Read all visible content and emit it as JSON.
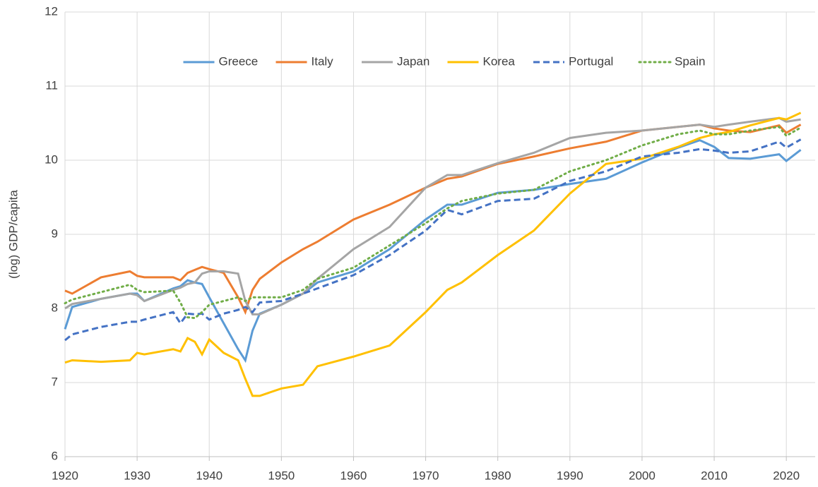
{
  "chart_data": {
    "type": "line",
    "y_label": "(log) GDP/capita",
    "x": [
      1920,
      1921,
      1925,
      1929,
      1930,
      1931,
      1935,
      1936,
      1937,
      1938,
      1939,
      1940,
      1942,
      1944,
      1945,
      1946,
      1947,
      1950,
      1953,
      1955,
      1960,
      1965,
      1970,
      1973,
      1975,
      1980,
      1985,
      1990,
      1995,
      2000,
      2005,
      2008,
      2010,
      2012,
      2015,
      2019,
      2020,
      2022
    ],
    "series": [
      {
        "name": "Greece",
        "color": "#5b9bd5",
        "dash": "solid",
        "values": [
          7.72,
          8.02,
          8.13,
          8.2,
          8.2,
          8.1,
          8.27,
          8.3,
          8.38,
          8.35,
          8.33,
          8.15,
          7.8,
          7.45,
          7.3,
          7.7,
          7.93,
          8.05,
          8.2,
          8.35,
          8.5,
          8.8,
          9.2,
          9.4,
          9.4,
          9.56,
          9.6,
          9.68,
          9.75,
          9.97,
          10.17,
          10.27,
          10.18,
          10.03,
          10.02,
          10.08,
          9.99,
          10.14
        ]
      },
      {
        "name": "Italy",
        "color": "#ed7d31",
        "dash": "solid",
        "values": [
          8.24,
          8.2,
          8.42,
          8.5,
          8.44,
          8.42,
          8.42,
          8.38,
          8.48,
          8.52,
          8.56,
          8.53,
          8.48,
          8.15,
          7.95,
          8.25,
          8.4,
          8.62,
          8.8,
          8.9,
          9.2,
          9.4,
          9.63,
          9.75,
          9.78,
          9.95,
          10.05,
          10.16,
          10.25,
          10.4,
          10.45,
          10.48,
          10.43,
          10.4,
          10.38,
          10.47,
          10.37,
          10.48
        ]
      },
      {
        "name": "Japan",
        "color": "#a5a5a5",
        "dash": "solid",
        "values": [
          8.0,
          8.06,
          8.13,
          8.2,
          8.18,
          8.1,
          8.25,
          8.28,
          8.33,
          8.35,
          8.47,
          8.5,
          8.5,
          8.47,
          8.1,
          7.92,
          7.92,
          8.05,
          8.2,
          8.4,
          8.8,
          9.1,
          9.63,
          9.8,
          9.8,
          9.96,
          10.1,
          10.3,
          10.37,
          10.4,
          10.45,
          10.48,
          10.45,
          10.48,
          10.52,
          10.57,
          10.52,
          10.55
        ]
      },
      {
        "name": "Korea",
        "color": "#ffc000",
        "dash": "solid",
        "values": [
          7.27,
          7.3,
          7.28,
          7.3,
          7.4,
          7.38,
          7.45,
          7.42,
          7.6,
          7.55,
          7.38,
          7.58,
          7.4,
          7.3,
          7.05,
          6.82,
          6.82,
          6.92,
          6.97,
          7.22,
          7.35,
          7.5,
          7.95,
          8.25,
          8.35,
          8.72,
          9.05,
          9.55,
          9.95,
          10.02,
          10.18,
          10.3,
          10.35,
          10.38,
          10.47,
          10.57,
          10.55,
          10.64
        ]
      },
      {
        "name": "Portugal",
        "color": "#4472c4",
        "dash": "dash",
        "values": [
          7.57,
          7.65,
          7.75,
          7.82,
          7.82,
          7.85,
          7.95,
          7.8,
          7.93,
          7.92,
          7.93,
          7.85,
          7.93,
          7.98,
          8.02,
          7.95,
          8.08,
          8.1,
          8.2,
          8.27,
          8.45,
          8.72,
          9.05,
          9.33,
          9.27,
          9.45,
          9.48,
          9.72,
          9.85,
          10.05,
          10.1,
          10.15,
          10.13,
          10.1,
          10.12,
          10.25,
          10.17,
          10.28
        ]
      },
      {
        "name": "Spain",
        "color": "#70ad47",
        "dash": "dot",
        "values": [
          8.07,
          8.12,
          8.22,
          8.32,
          8.25,
          8.22,
          8.24,
          8.08,
          7.88,
          7.87,
          7.95,
          8.05,
          8.1,
          8.15,
          8.1,
          8.15,
          8.15,
          8.15,
          8.25,
          8.4,
          8.55,
          8.85,
          9.15,
          9.35,
          9.45,
          9.55,
          9.6,
          9.85,
          10.0,
          10.2,
          10.35,
          10.4,
          10.35,
          10.35,
          10.4,
          10.45,
          10.33,
          10.44
        ]
      }
    ],
    "xlim": [
      1920,
      2024
    ],
    "xticks": [
      1920,
      1930,
      1940,
      1950,
      1960,
      1970,
      1980,
      1990,
      2000,
      2010,
      2020
    ],
    "ylim": [
      6,
      12
    ],
    "yticks": [
      6,
      7,
      8,
      9,
      10,
      11,
      12
    ],
    "grid": true,
    "legend": "top"
  }
}
